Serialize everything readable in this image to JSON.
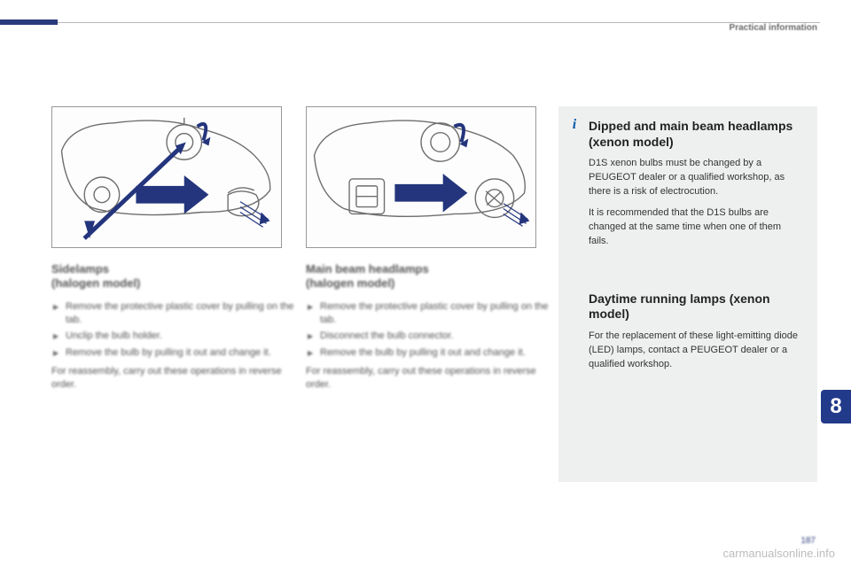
{
  "colors": {
    "accent_blue": "#223a8a",
    "diagram_blue": "#24357d",
    "diagram_stroke": "#6e6e6e",
    "infobox_bg": "#eef0f0",
    "header_gray": "#6a6a6a",
    "body_gray": "#555555",
    "watermark_gray": "#bcbcbc"
  },
  "header": {
    "section_label": "Practical information"
  },
  "col1": {
    "heading": "Sidelamps\n(halogen model)",
    "bullets": [
      "Remove the protective plastic cover by pulling on the tab.",
      "Unclip the bulb holder.",
      "Remove the bulb by pulling it out and change it."
    ],
    "closing": "For reassembly, carry out these operations in reverse order."
  },
  "col2": {
    "heading": "Main beam headlamps\n(halogen model)",
    "bullets": [
      "Remove the protective plastic cover by pulling on the tab.",
      "Disconnect the bulb connector.",
      "Remove the bulb by pulling it out and change it."
    ],
    "closing": "For reassembly, carry out these operations in reverse order."
  },
  "infobox": {
    "block1": {
      "heading": "Dipped and main beam headlamps (xenon model)",
      "p1": "D1S xenon bulbs must be changed by a PEUGEOT dealer or a qualified workshop, as there is a risk of electrocution.",
      "p2": "It is recommended that the D1S bulbs are changed at the same time when one of them fails."
    },
    "block2": {
      "heading": "Daytime running lamps (xenon model)",
      "p1": "For the replacement of these light-emitting diode (LED) lamps, contact a PEUGEOT dealer or a qualified workshop."
    }
  },
  "chapter_number": "8",
  "page_number": "187",
  "watermark": "carmanualsonline.info",
  "diagram1": {
    "description": "headlamp-housing-sidelamp",
    "arrow_color": "#24357d",
    "outline_color": "#6e6e6e"
  },
  "diagram2": {
    "description": "headlamp-housing-mainbeam",
    "arrow_color": "#24357d",
    "outline_color": "#6e6e6e"
  }
}
